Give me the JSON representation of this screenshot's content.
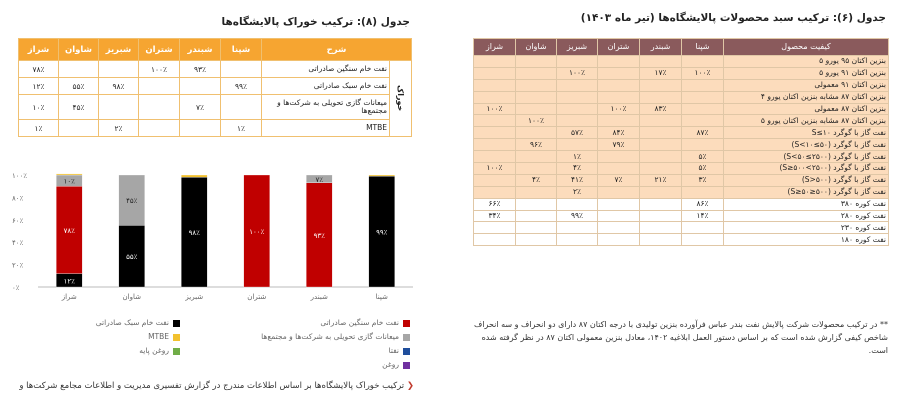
{
  "right": {
    "title": "جدول (۶): ترکیب سبد محصولات پالایشگاه‌ها (تیر ماه ۱۴۰۳)",
    "headers": [
      "کیفیت محصول",
      "شپنا",
      "شبندر",
      "شتران",
      "شبریز",
      "شاوان",
      "شراز"
    ],
    "rows": [
      {
        "name": "بنزین اکتان ۹۵ یورو ۵",
        "v": [
          "",
          "",
          "",
          "",
          "",
          ""
        ]
      },
      {
        "name": "بنزین اکتان ۹۱ یورو ۵",
        "v": [
          "۱۰۰٪",
          "۱۷٪",
          "",
          "۱۰۰٪",
          "",
          ""
        ]
      },
      {
        "name": "بنزین اکتان ۹۱ معمولی",
        "v": [
          "",
          "",
          "",
          "",
          "",
          ""
        ]
      },
      {
        "name": "بنزین اکتان ۸۷ مشابه بنزین اکتان یورو ۴",
        "v": [
          "",
          "",
          "",
          "",
          "",
          ""
        ]
      },
      {
        "name": "بنزین اکتان ۸۷ معمولی",
        "v": [
          "",
          "۸۳٪",
          "۱۰۰٪",
          "",
          "",
          "۱۰۰٪"
        ]
      },
      {
        "name": "بنزین اکتان ۸۷ مشابه بنزین اکتان یورو ۵",
        "v": [
          "",
          "",
          "",
          "",
          "۱۰۰٪",
          ""
        ]
      },
      {
        "name": "نفت گاز با گوگرد ۱۰≥S",
        "v": [
          "۸۷٪",
          "",
          "۸۴٪",
          "۵۷٪",
          "",
          ""
        ]
      },
      {
        "name": "نفت گاز با گوگرد (۵۰≥S<۱۰)",
        "v": [
          "",
          "",
          "۷۹٪",
          "",
          "۹۶٪",
          ""
        ]
      },
      {
        "name": "نفت گاز با گوگرد (۲۵۰۰≥S<۵۰)",
        "v": [
          "۵٪",
          "",
          "",
          "۱٪",
          "",
          ""
        ]
      },
      {
        "name": "نفت گاز با گوگرد (۲۵۰۰>S≥۵۰۰)",
        "v": [
          "۵٪",
          "",
          "",
          "۴٪",
          "",
          "۱۰۰٪"
        ]
      },
      {
        "name": "نفت گاز با گوگرد (۵۰۰<S)",
        "v": [
          "۳٪",
          "۲۱٪",
          "۷٪",
          "۴۱٪",
          "۴٪",
          ""
        ]
      },
      {
        "name": "نفت گاز با گوگرد (۵۰۰≤S≥۵۰)",
        "v": [
          "",
          "",
          "",
          "۲٪",
          "",
          ""
        ]
      },
      {
        "name": "نفت کوره ۳۸۰",
        "v": [
          "۸۶٪",
          "",
          "",
          "",
          "",
          "۶۶٪"
        ]
      },
      {
        "name": "نفت کوره ۲۸۰",
        "v": [
          "۱۴٪",
          "",
          "",
          "۹۹٪",
          "",
          "۳۴٪"
        ]
      },
      {
        "name": "نفت کوره ۲۳۰",
        "v": [
          "",
          "",
          "",
          "",
          "",
          ""
        ]
      },
      {
        "name": "نفت کوره ۱۸۰",
        "v": [
          "",
          "",
          "",
          "",
          "",
          ""
        ]
      }
    ],
    "note": "** در ترکیب محصولات شرکت پالایش نفت بندر عباس فرآورده بنزین تولیدی با درجه اکتان ۸۷ دارای دو انحراف و سه انحراف شاخص کیفی گزارش شده است که بر اساس دستور العمل ابلاغیه ۱۴۰۲، معادل بنزین معمولی اکتان ۸۷ در نظر گرفته شده است."
  },
  "left": {
    "title": "جدول (۸): ترکیب خوراک پالایشگاه‌ها",
    "headers": [
      "شرح",
      "شپنا",
      "شبندر",
      "شتران",
      "شبریز",
      "شاوان",
      "شراز"
    ],
    "group": "خوراک",
    "rows": [
      {
        "name": "نفت خام سنگین صادراتی",
        "v": [
          "",
          "۹۳٪",
          "۱۰۰٪",
          "",
          "",
          "۷۸٪"
        ]
      },
      {
        "name": "نفت خام سبک صادراتی",
        "v": [
          "۹۹٪",
          "",
          "",
          "۹۸٪",
          "۵۵٪",
          "۱۲٪"
        ]
      },
      {
        "name": "میعانات گازی تحویلی به شرکت‌ها و مجتمع‌ها",
        "v": [
          "",
          "۷٪",
          "",
          "",
          "۴۵٪",
          "۱۰٪"
        ]
      },
      {
        "name": "MTBE",
        "v": [
          "۱٪",
          "",
          "",
          "۲٪",
          "",
          "۱٪"
        ]
      }
    ]
  },
  "chart_data": {
    "type": "bar",
    "stacked": true,
    "categories": [
      "شپنا",
      "شبندر",
      "شتران",
      "شبریز",
      "شاوان",
      "شراز"
    ],
    "yticks": [
      "۰٪",
      "۲۰٪",
      "۴۰٪",
      "۶۰٪",
      "۸۰٪",
      "۱۰۰٪"
    ],
    "ylim": [
      0,
      100
    ],
    "series": [
      {
        "name": "نفت خام سبک صادراتی",
        "color": "#000000",
        "values": [
          99,
          0,
          0,
          98,
          55,
          12
        ],
        "labels": [
          "۹۹٪",
          "",
          "",
          "۹۸٪",
          "۵۵٪",
          "۱۲٪"
        ]
      },
      {
        "name": "نفت خام سنگین صادراتی",
        "color": "#c00000",
        "values": [
          0,
          93,
          100,
          0,
          0,
          78
        ],
        "labels": [
          "",
          "۹۳٪",
          "۱۰۰٪",
          "",
          "",
          "۷۸٪"
        ]
      },
      {
        "name": "میعانات گازی تحویلی به شرکت‌ها و مجتمع‌ها",
        "color": "#a6a6a6",
        "values": [
          0,
          7,
          0,
          0,
          45,
          10
        ],
        "labels": [
          "",
          "۷٪",
          "",
          "",
          "۴۵٪",
          "۱۰٪"
        ]
      },
      {
        "name": "MTBE",
        "color": "#f2c12e",
        "values": [
          1,
          0,
          0,
          2,
          0,
          1
        ],
        "labels": [
          "",
          "",
          "",
          "",
          "",
          ""
        ]
      },
      {
        "name": "نفتا",
        "color": "#1f4e9c",
        "values": [
          0,
          0,
          0,
          0,
          0,
          0
        ],
        "labels": [
          "",
          "",
          "",
          "",
          "",
          ""
        ]
      },
      {
        "name": "روغن پایه",
        "color": "#70ad47",
        "values": [
          0,
          0,
          0,
          0,
          0,
          0
        ],
        "labels": [
          "",
          "",
          "",
          "",
          "",
          ""
        ]
      },
      {
        "name": "روغن",
        "color": "#7030a0",
        "values": [
          0,
          0,
          0,
          0,
          0,
          0
        ],
        "labels": [
          "",
          "",
          "",
          "",
          "",
          ""
        ]
      }
    ]
  },
  "bottom_note": "ترکیب خوراک پالایشگاه‌ها بر اساس اطلاعات مندرج در گزارش تفسیری مدیریت و اطلاعات مجامع شرکت‌ها و"
}
